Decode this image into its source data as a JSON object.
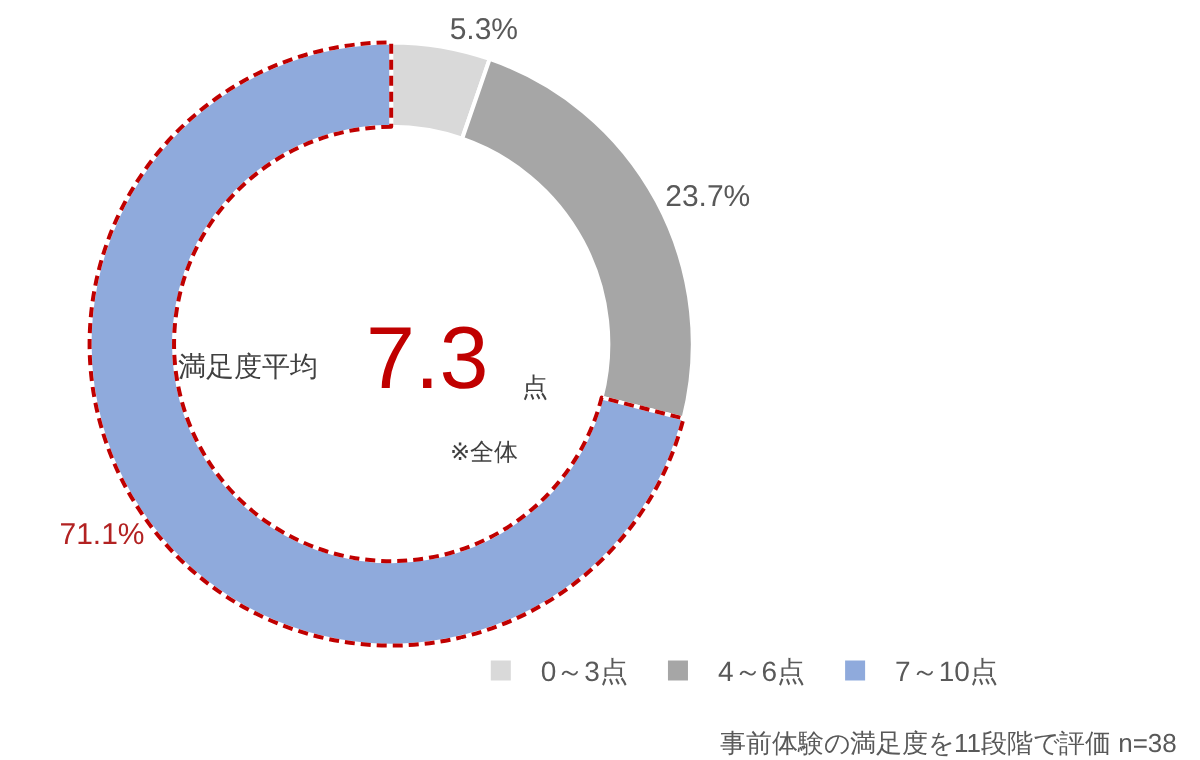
{
  "chart_data": {
    "type": "donut",
    "categories": [
      "0～3点",
      "4～6点",
      "7～10点"
    ],
    "values": [
      5.3,
      23.7,
      71.1
    ],
    "value_labels": [
      "5.3%",
      "23.7%",
      "71.1%"
    ],
    "colors": [
      "#d9d9d9",
      "#a6a6a6",
      "#8faadc"
    ],
    "legend": "bottom right",
    "annotations": [
      "満足度平均",
      "7.3",
      "点",
      "※全体",
      "事前体験の満足度を11段階で評価 n=38"
    ]
  }
}
